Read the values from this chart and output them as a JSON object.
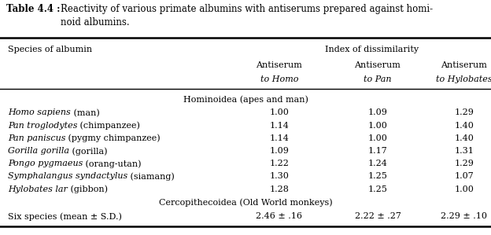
{
  "title_bold": "Table 4.4 :",
  "title_line1": "  Reactivity of various primate albumins with antiserums prepared against homi-",
  "title_line2": "  noid albumins.",
  "col_header_left": "Species of albumin",
  "col_header_main": "Index of dissimilarity",
  "col_headers_plain": [
    "Antiserum",
    "Antiserum",
    "Antiserum"
  ],
  "col_headers_italic": [
    "to Homo",
    "to Pan",
    "to Hylobates"
  ],
  "group1_label": "Hominoidea (apes and man)",
  "group2_label": "Cercopithecoidea (Old World monkeys)",
  "rows": [
    {
      "italic": "Homo sapiens",
      "plain": " (man)",
      "v1": "1.00",
      "v2": "1.09",
      "v3": "1.29"
    },
    {
      "italic": "Pan troglodytes",
      "plain": " (chimpanzee)",
      "v1": "1.14",
      "v2": "1.00",
      "v3": "1.40"
    },
    {
      "italic": "Pan paniscus",
      "plain": " (pygmy chimpanzee)",
      "v1": "1.14",
      "v2": "1.00",
      "v3": "1.40"
    },
    {
      "italic": "Gorilla gorilla",
      "plain": " (gorilla)",
      "v1": "1.09",
      "v2": "1.17",
      "v3": "1.31"
    },
    {
      "italic": "Pongo pygmaeus",
      "plain": " (orang-utan)",
      "v1": "1.22",
      "v2": "1.24",
      "v3": "1.29"
    },
    {
      "italic": "Symphalangus syndactylus",
      "plain": " (siamang)",
      "v1": "1.30",
      "v2": "1.25",
      "v3": "1.07"
    },
    {
      "italic": "Hylobates lar",
      "plain": " (gibbon)",
      "v1": "1.28",
      "v2": "1.25",
      "v3": "1.00"
    }
  ],
  "footer_plain": "Six species (mean ± S.D.)",
  "footer_vals": [
    "2.46 ± .16",
    "2.22 ± .27",
    "2.29 ± .10"
  ],
  "bg_color": "#ffffff",
  "text_color": "#000000",
  "fs": 8.0,
  "title_fs": 8.5
}
